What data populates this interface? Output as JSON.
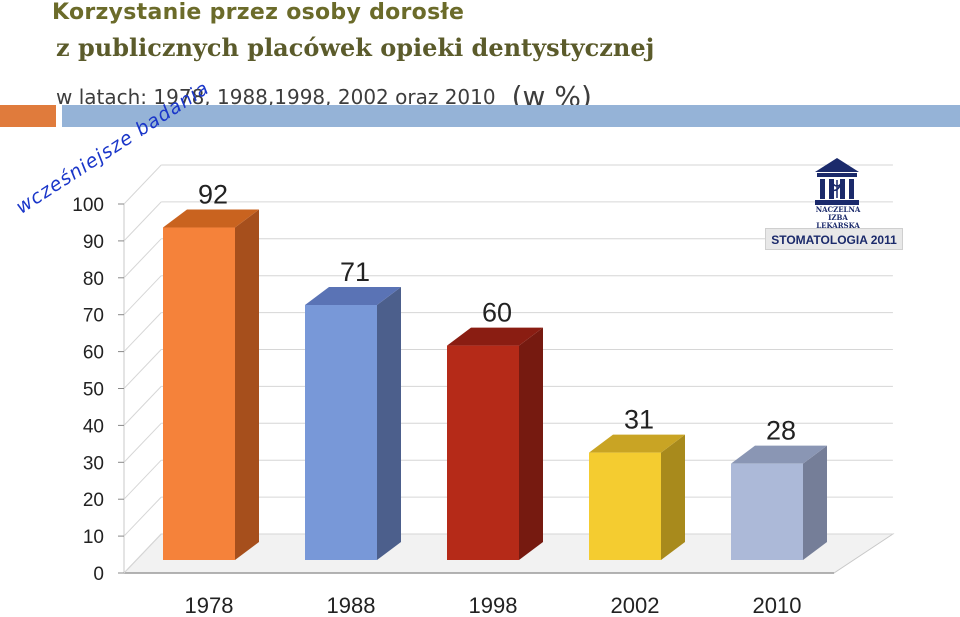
{
  "header": {
    "line1": "Korzystanie przez osoby dorosłe",
    "line2": "z publicznych placówek opieki dentystycznej",
    "line3": "w latach: 1978, 1988,1998, 2002 oraz  2010",
    "unit": "(w %)"
  },
  "annotation": "wcześniejsze badania",
  "logo": {
    "icon": "building-columns-icon",
    "caption_line1": "NACZELNA",
    "caption_line2": "IZBA LEKARSKA"
  },
  "stamp": "STOMATOLOGIA  2011",
  "colors": {
    "orange_stripe": "#e07b3c",
    "blue_stripe": "#95b3d7"
  },
  "chart_data": {
    "type": "bar",
    "categories": [
      "1978",
      "1988",
      "1998",
      "2002",
      "2010"
    ],
    "values": [
      92,
      71,
      60,
      31,
      28
    ],
    "data_labels": [
      "92",
      "71",
      "60",
      "31",
      "28"
    ],
    "yticks": [
      "0",
      "10",
      "20",
      "30",
      "40",
      "50",
      "60",
      "70",
      "80",
      "90",
      "100"
    ],
    "ylim": [
      0,
      100
    ],
    "colors": [
      "#f5823a",
      "#7898d8",
      "#b52a18",
      "#f4cc30",
      "#acb9d8"
    ],
    "side_colors": [
      "#a64f1c",
      "#4c5f8c",
      "#761a10",
      "#a88a1c",
      "#757e98"
    ],
    "top_colors": [
      "#c9631f",
      "#5a73b5",
      "#8a1d12",
      "#c9a424",
      "#8a96b4"
    ],
    "grid": true,
    "style": "3d"
  }
}
